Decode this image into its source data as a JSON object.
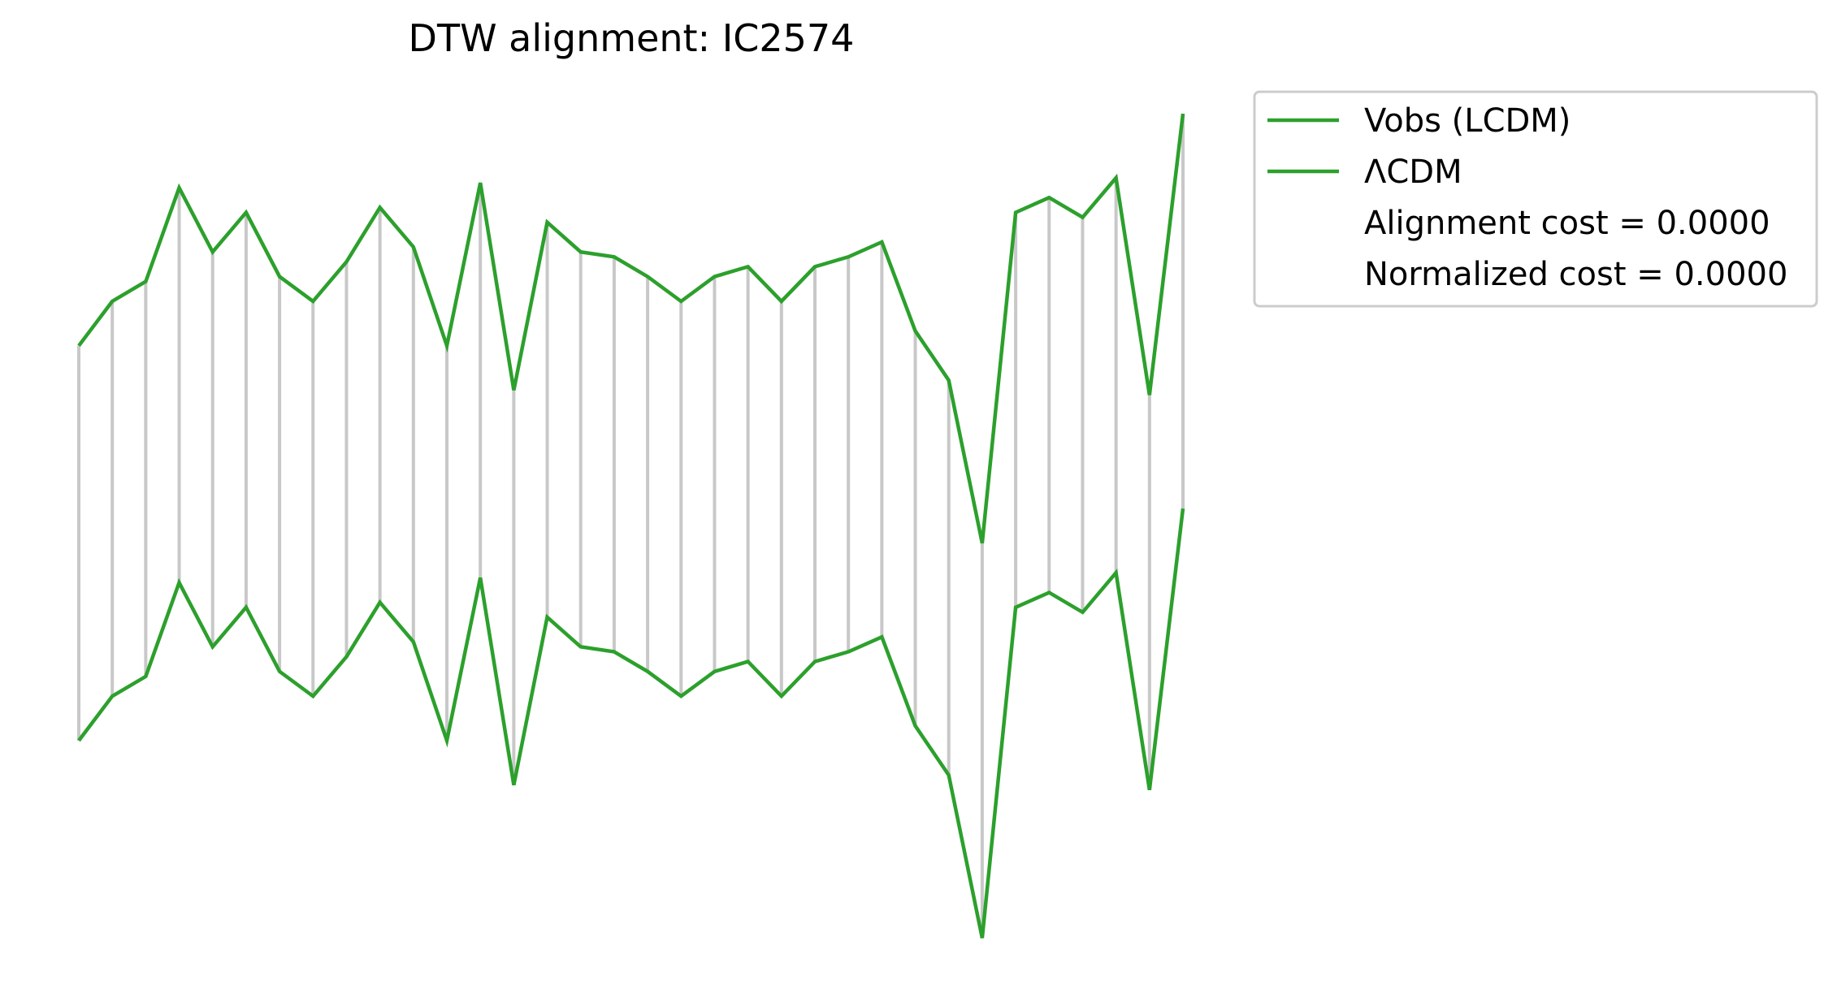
{
  "chart_data": {
    "type": "line",
    "title": "DTW alignment: IC2574",
    "xlabel": "",
    "ylabel": "",
    "axes_visible": false,
    "grid": false,
    "legend_position": "outside-top-right",
    "offset_between_series": 8,
    "colors": {
      "series": "#2ca02c",
      "alignment_lines": "#c8c8c8"
    },
    "x": [
      0,
      1,
      2,
      3,
      4,
      5,
      6,
      7,
      8,
      9,
      10,
      11,
      12,
      13,
      14,
      15,
      16,
      17,
      18,
      19,
      20,
      21,
      22,
      23,
      24,
      25,
      26,
      27,
      28,
      29,
      30,
      31,
      32,
      33
    ],
    "series": [
      {
        "name": "Vobs (LCDM)",
        "role": "top",
        "values": [
          27.4,
          28.3,
          28.7,
          30.6,
          29.3,
          30.1,
          28.8,
          28.3,
          29.1,
          30.2,
          29.4,
          27.4,
          30.7,
          26.5,
          29.9,
          29.3,
          29.2,
          28.8,
          28.3,
          28.8,
          29.0,
          28.3,
          29.0,
          29.2,
          29.5,
          27.7,
          26.7,
          23.4,
          30.1,
          30.4,
          30.0,
          30.8,
          26.4,
          32.1
        ]
      },
      {
        "name": "ΛCDM",
        "role": "bottom",
        "values": [
          27.4,
          28.3,
          28.7,
          30.6,
          29.3,
          30.1,
          28.8,
          28.3,
          29.1,
          30.2,
          29.4,
          27.4,
          30.7,
          26.5,
          29.9,
          29.3,
          29.2,
          28.8,
          28.3,
          28.8,
          29.0,
          28.3,
          29.0,
          29.2,
          29.5,
          27.7,
          26.7,
          23.4,
          30.1,
          30.4,
          30.0,
          30.8,
          26.4,
          32.1
        ]
      }
    ],
    "legend": {
      "entries": [
        {
          "label": "Vobs (LCDM)",
          "has_line": true
        },
        {
          "label": "ΛCDM",
          "has_line": true
        },
        {
          "label": "Alignment cost = 0.0000",
          "has_line": false
        },
        {
          "label": "Normalized cost = 0.0000",
          "has_line": false
        }
      ]
    }
  }
}
